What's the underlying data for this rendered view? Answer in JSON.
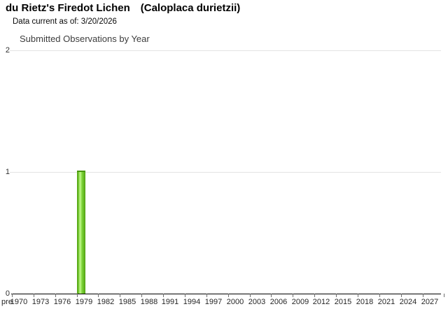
{
  "header": {
    "common_name": "du Rietz's Firedot Lichen",
    "scientific_name": "(Caloplaca durietzii)",
    "data_current": "Data current as of: 3/20/2026"
  },
  "chart_data": {
    "type": "bar",
    "title": "Submitted Observations by Year",
    "xlabel": "",
    "ylabel": "",
    "series": [
      {
        "name": "Submitted Observations",
        "points": [
          {
            "year": 1979,
            "value": 1
          }
        ]
      }
    ],
    "x_tick_labels": [
      "pre",
      "1970",
      "1973",
      "1976",
      "1979",
      "1982",
      "1985",
      "1988",
      "1991",
      "1994",
      "1997",
      "2000",
      "2003",
      "2006",
      "2009",
      "2012",
      "2015",
      "2018",
      "2021",
      "2024",
      "2027"
    ],
    "y_tick_labels": [
      "0",
      "1",
      "2"
    ],
    "ylim": [
      0,
      2
    ],
    "x_first_labeled_year": 1970,
    "x_label_step_years": 3,
    "grid": "horizontal",
    "legend": "none",
    "colors": {
      "bar_main": "#76cd32",
      "bar_edge": "#4f9f10",
      "bar_highlight": "#c6f795",
      "bar_cap": "#46950a",
      "gridline": "#e3e3e3",
      "axis": "#000000",
      "chart_title_text": "#3d3d3d",
      "page_title_text": "#000000"
    }
  }
}
